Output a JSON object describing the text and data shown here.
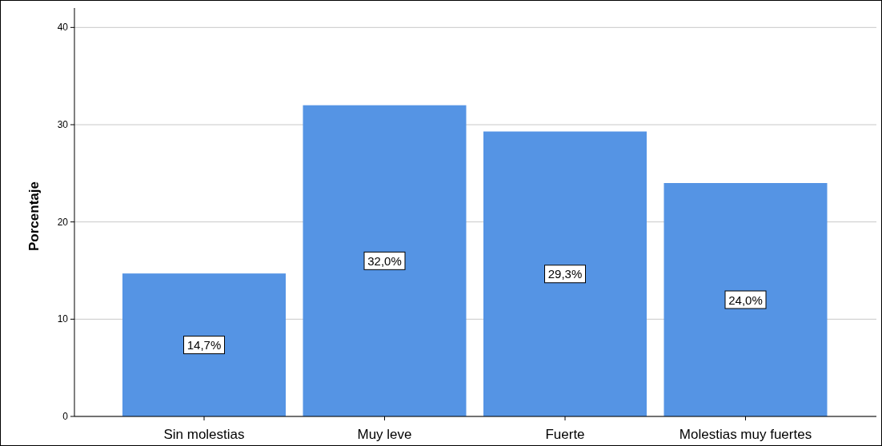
{
  "chart_data": {
    "type": "bar",
    "ylabel": "Porcentaje",
    "categories": [
      "Sin molestias",
      "Muy leve",
      "Fuerte",
      "Molestias muy fuertes"
    ],
    "values": [
      14.7,
      32.0,
      29.3,
      24.0
    ],
    "value_labels": [
      "14,7%",
      "32,0%",
      "29,3%",
      "24,0%"
    ],
    "color": "#5594e4",
    "ylim": [
      0,
      42
    ],
    "yticks": [
      0,
      10,
      20,
      30,
      40
    ],
    "grid": "y"
  }
}
